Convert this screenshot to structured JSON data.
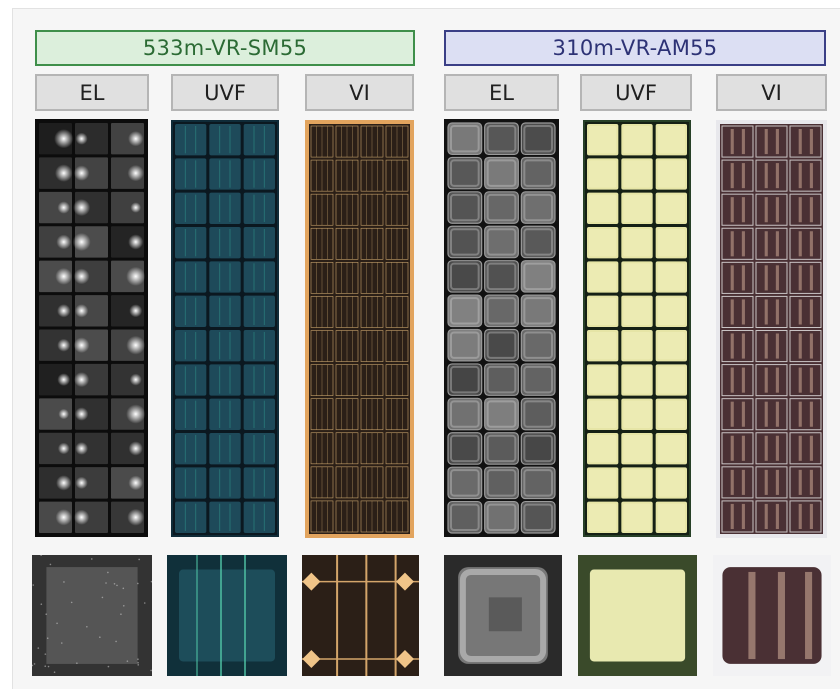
{
  "groups": [
    {
      "label": "533m-VR-SM55",
      "accent": "#3f8f4a"
    },
    {
      "label": "310m-VR-AM55",
      "accent": "#3a3f86"
    }
  ],
  "columns": [
    "EL",
    "UVF",
    "VI",
    "EL",
    "UVF",
    "VI"
  ],
  "panels": [
    {
      "group": "533m-VR-SM55",
      "mode": "EL",
      "grid": "3x12",
      "colors": {
        "bg": "#0c0c0c",
        "cell": "#3a3a3a",
        "hot": "#ffffff"
      }
    },
    {
      "group": "533m-VR-SM55",
      "mode": "UVF",
      "grid": "3x12",
      "colors": {
        "bg": "#0b1820",
        "cell": "#1e4a5a",
        "line": "#39b9a7"
      }
    },
    {
      "group": "533m-VR-SM55",
      "mode": "VI",
      "grid": "4x12",
      "colors": {
        "frame": "#e2a45e",
        "cell": "#2b1f17",
        "busbar": "#c8a36c"
      }
    },
    {
      "group": "310m-VR-AM55",
      "mode": "EL",
      "grid": "3x12",
      "colors": {
        "bg": "#111111",
        "cell": "#555555",
        "edge": "#cfcfcf"
      }
    },
    {
      "group": "310m-VR-AM55",
      "mode": "UVF",
      "grid": "3x12",
      "colors": {
        "bg": "#152015",
        "cell": "#e6e5a6",
        "line": "#3a5a3a"
      }
    },
    {
      "group": "310m-VR-AM55",
      "mode": "VI",
      "grid": "3x12",
      "colors": {
        "frame": "#e8e8ec",
        "cell": "#4a3034",
        "stain": "#b08f80"
      }
    }
  ]
}
